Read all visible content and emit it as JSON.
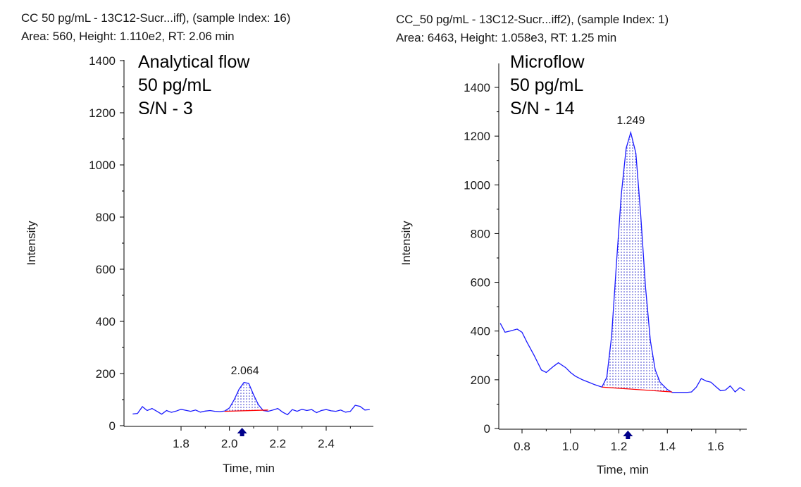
{
  "colors": {
    "trace": "#1a1aff",
    "baseline": "#ff0000",
    "fill": "#3333cc",
    "marker": "#00008b",
    "axis": "#000000"
  },
  "chart_data": [
    {
      "type": "line",
      "header_line1": "CC 50 pg/mL - 13C12-Sucr...iff), (sample Index: 16)",
      "header_line2": "Area: 560, Height: 1.110e2, RT: 2.06 min",
      "annotation": [
        "Analytical flow",
        "50 pg/mL",
        "S/N - 3"
      ],
      "xlabel": "Time, min",
      "ylabel": "Intensity",
      "xlim": [
        1.6,
        2.58
      ],
      "ylim": [
        0,
        1400
      ],
      "xticks": [
        "1.8",
        "2.0",
        "2.2",
        "2.4"
      ],
      "yticks": [
        "0",
        "200",
        "400",
        "600",
        "800",
        "1000",
        "1200",
        "1400"
      ],
      "peak_label": "2.064",
      "peak_rt": 2.064,
      "integration_range": [
        1.98,
        2.16
      ],
      "baseline_y": [
        55,
        60
      ],
      "x": [
        1.6,
        1.62,
        1.64,
        1.66,
        1.68,
        1.7,
        1.72,
        1.74,
        1.76,
        1.78,
        1.8,
        1.82,
        1.84,
        1.86,
        1.88,
        1.9,
        1.92,
        1.94,
        1.96,
        1.98,
        2.0,
        2.02,
        2.04,
        2.06,
        2.08,
        2.1,
        2.12,
        2.14,
        2.16,
        2.18,
        2.2,
        2.22,
        2.24,
        2.26,
        2.28,
        2.3,
        2.32,
        2.34,
        2.36,
        2.38,
        2.4,
        2.42,
        2.44,
        2.46,
        2.48,
        2.5,
        2.52,
        2.54,
        2.56,
        2.58
      ],
      "y": [
        45,
        47,
        73,
        58,
        66,
        55,
        44,
        58,
        51,
        56,
        63,
        59,
        55,
        60,
        52,
        56,
        58,
        55,
        54,
        56,
        68,
        100,
        140,
        166,
        162,
        118,
        80,
        58,
        55,
        60,
        66,
        52,
        42,
        62,
        55,
        63,
        58,
        62,
        50,
        58,
        62,
        57,
        55,
        60,
        52,
        55,
        78,
        74,
        60,
        62
      ]
    },
    {
      "type": "line",
      "header_line1": "CC_50 pg/mL - 13C12-Sucr...iff2), (sample Index: 1)",
      "header_line2": "Area: 6463, Height: 1.058e3, RT: 1.25 min",
      "annotation": [
        "Microflow",
        "50 pg/mL",
        "S/N - 14"
      ],
      "xlabel": "Time, min",
      "ylabel": "Intensity",
      "xlim": [
        0.71,
        1.72
      ],
      "ylim": [
        0,
        1450
      ],
      "xticks": [
        "0.8",
        "1.0",
        "1.2",
        "1.4",
        "1.6"
      ],
      "yticks": [
        "0",
        "200",
        "400",
        "600",
        "800",
        "1000",
        "1200",
        "1400"
      ],
      "peak_label": "1.249",
      "peak_rt": 1.249,
      "integration_range": [
        1.13,
        1.42
      ],
      "baseline_y": [
        170,
        150
      ],
      "x": [
        0.71,
        0.73,
        0.75,
        0.78,
        0.8,
        0.82,
        0.85,
        0.88,
        0.9,
        0.93,
        0.95,
        0.98,
        1.0,
        1.02,
        1.05,
        1.08,
        1.1,
        1.13,
        1.15,
        1.17,
        1.19,
        1.21,
        1.23,
        1.249,
        1.27,
        1.29,
        1.31,
        1.33,
        1.35,
        1.37,
        1.4,
        1.42,
        1.45,
        1.48,
        1.5,
        1.52,
        1.54,
        1.56,
        1.58,
        1.6,
        1.62,
        1.64,
        1.66,
        1.68,
        1.7,
        1.72
      ],
      "y": [
        432,
        395,
        400,
        408,
        395,
        355,
        300,
        240,
        230,
        255,
        270,
        250,
        230,
        215,
        200,
        188,
        180,
        170,
        210,
        380,
        680,
        960,
        1150,
        1215,
        1130,
        880,
        580,
        360,
        240,
        190,
        160,
        148,
        148,
        148,
        150,
        170,
        205,
        195,
        190,
        172,
        155,
        158,
        175,
        150,
        168,
        155
      ]
    }
  ]
}
